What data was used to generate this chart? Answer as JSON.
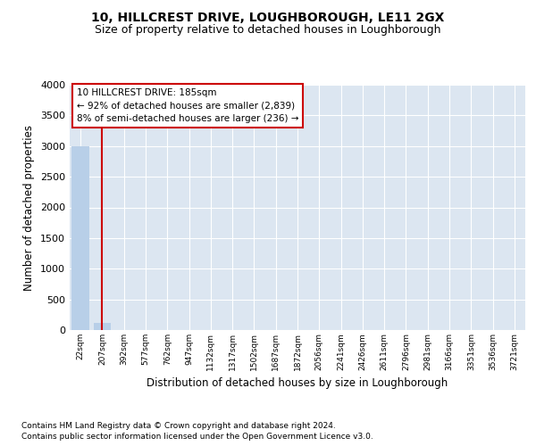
{
  "title": "10, HILLCREST DRIVE, LOUGHBOROUGH, LE11 2GX",
  "subtitle": "Size of property relative to detached houses in Loughborough",
  "xlabel": "Distribution of detached houses by size in Loughborough",
  "ylabel": "Number of detached properties",
  "footnote1": "Contains HM Land Registry data © Crown copyright and database right 2024.",
  "footnote2": "Contains public sector information licensed under the Open Government Licence v3.0.",
  "categories": [
    "22sqm",
    "207sqm",
    "392sqm",
    "577sqm",
    "762sqm",
    "947sqm",
    "1132sqm",
    "1317sqm",
    "1502sqm",
    "1687sqm",
    "1872sqm",
    "2056sqm",
    "2241sqm",
    "2426sqm",
    "2611sqm",
    "2796sqm",
    "2981sqm",
    "3166sqm",
    "3351sqm",
    "3536sqm",
    "3721sqm"
  ],
  "values": [
    2990,
    110,
    0,
    0,
    0,
    0,
    0,
    0,
    0,
    0,
    0,
    0,
    0,
    0,
    0,
    0,
    0,
    0,
    0,
    0,
    0
  ],
  "bar_color": "#b8cfe8",
  "vertical_line_color": "#cc0000",
  "property_line_x": 1.0,
  "annotation_title": "10 HILLCREST DRIVE: 185sqm",
  "annotation_line1": "← 92% of detached houses are smaller (2,839)",
  "annotation_line2": "8% of semi-detached houses are larger (236) →",
  "annotation_box_edge": "#cc0000",
  "ylim": [
    0,
    4000
  ],
  "yticks": [
    0,
    500,
    1000,
    1500,
    2000,
    2500,
    3000,
    3500,
    4000
  ],
  "plot_bg_color": "#dce6f1",
  "grid_color": "#ffffff",
  "fig_bg_color": "#ffffff",
  "title_fontsize": 10,
  "subtitle_fontsize": 9,
  "footnote_fontsize": 6.5
}
